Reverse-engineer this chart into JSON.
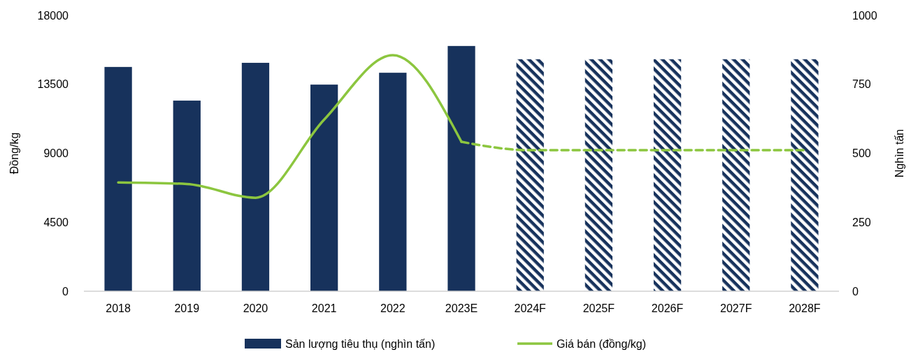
{
  "chart_data": {
    "type": "bar",
    "categories": [
      "2018",
      "2019",
      "2020",
      "2021",
      "2022",
      "2023E",
      "2024F",
      "2025F",
      "2026F",
      "2027F",
      "2028F"
    ],
    "ylabel": "Đồng/kg",
    "y2label": "Nghìn tấn",
    "ylim": [
      0,
      18000
    ],
    "yticks": [
      0,
      4500,
      9000,
      13500,
      18000
    ],
    "y2lim": [
      0,
      1000
    ],
    "y2ticks": [
      0,
      250,
      500,
      750,
      1000
    ],
    "stacked": true,
    "grid": false,
    "legend": "bottom",
    "series": [
      {
        "name": "Sản lượng tiêu thụ (nghìn tấn)",
        "axis": "y2",
        "color": "#17325c",
        "values": [
          813,
          691,
          828,
          749,
          792,
          889,
          null,
          null,
          null,
          null,
          null
        ]
      },
      {
        "axis": "y2",
        "color": "#17325c",
        "values": [
          null,
          null,
          null,
          null,
          null,
          null,
          841,
          841,
          841,
          841,
          841
        ]
      },
      {
        "name": "Giá bán (đồng/kg)",
        "type": "line",
        "axis": "y",
        "color": "#8cc63f",
        "line_style": "solid",
        "values": [
          7100,
          7000,
          6100,
          11200,
          15400,
          9750,
          null,
          null,
          null,
          null,
          null
        ]
      },
      {
        "type": "line",
        "axis": "y",
        "color": "#8cc63f",
        "line_style": "dashed",
        "values": [
          null,
          null,
          null,
          null,
          null,
          9750,
          9200,
          9200,
          9200,
          9200,
          9200
        ]
      }
    ]
  }
}
